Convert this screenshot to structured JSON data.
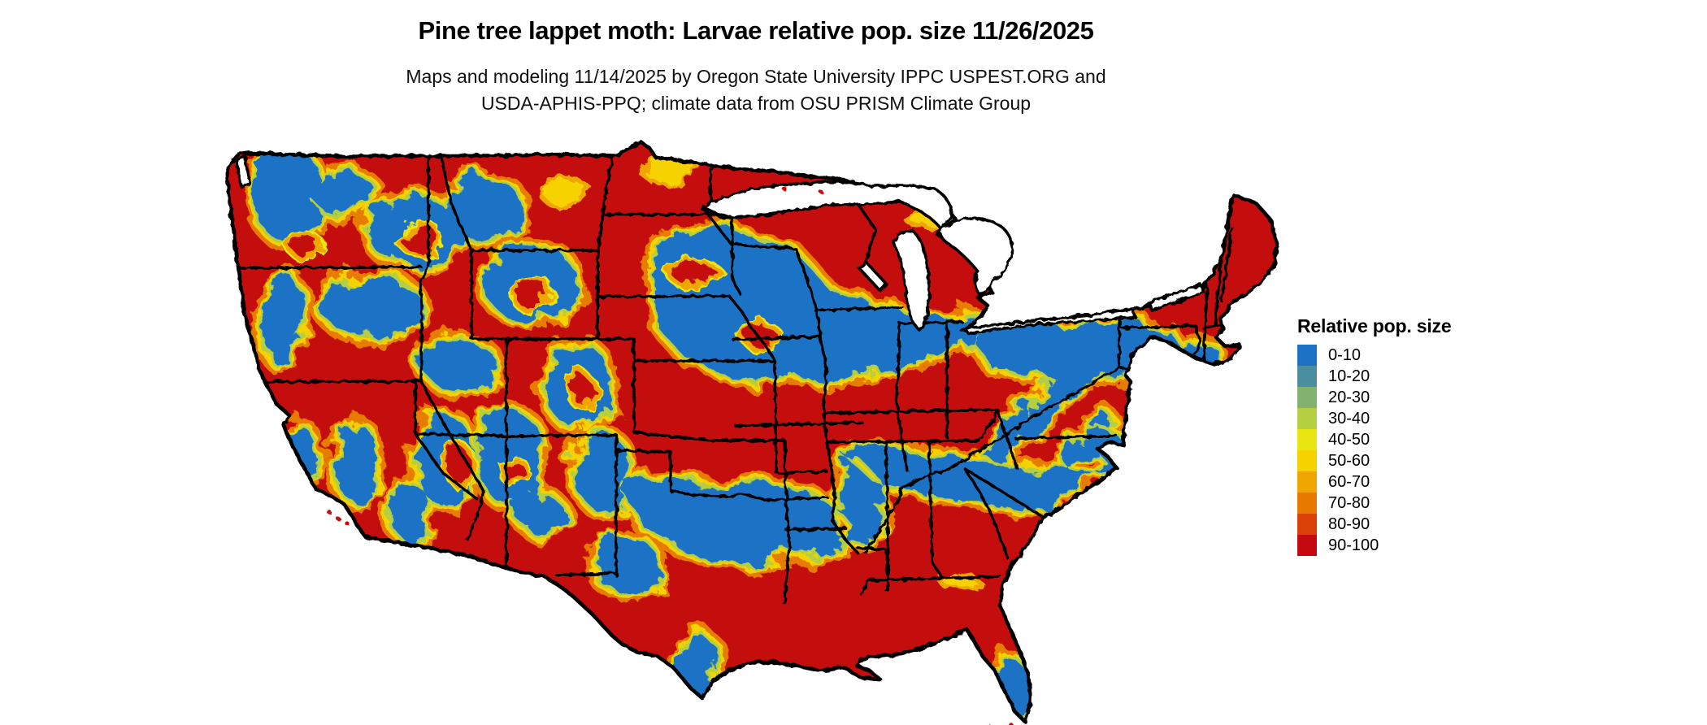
{
  "header": {
    "title": "Pine tree lappet moth: Larvae relative pop. size 11/26/2025",
    "subtitle_line1": "Maps and modeling 11/14/2025 by Oregon State University IPPC USPEST.ORG and",
    "subtitle_line2": "USDA-APHIS-PPQ; climate data from OSU PRISM Climate Group"
  },
  "legend": {
    "title": "Relative pop. size",
    "items": [
      {
        "label": "0-10",
        "color": "#1e72c4"
      },
      {
        "label": "10-20",
        "color": "#4b8f9e"
      },
      {
        "label": "20-30",
        "color": "#82b26d"
      },
      {
        "label": "30-40",
        "color": "#b5cf42"
      },
      {
        "label": "40-50",
        "color": "#e9e513"
      },
      {
        "label": "50-60",
        "color": "#f6d300"
      },
      {
        "label": "60-70",
        "color": "#f0a600"
      },
      {
        "label": "70-80",
        "color": "#e67b00"
      },
      {
        "label": "80-90",
        "color": "#d94106"
      },
      {
        "label": "90-100",
        "color": "#c40a10"
      }
    ]
  },
  "map": {
    "region": "Continental United States",
    "type": "raster choropleth",
    "base_value_class": "90-100",
    "base_color": "#c40a10",
    "border_color": "#000000",
    "water_color": "#ffffff"
  }
}
